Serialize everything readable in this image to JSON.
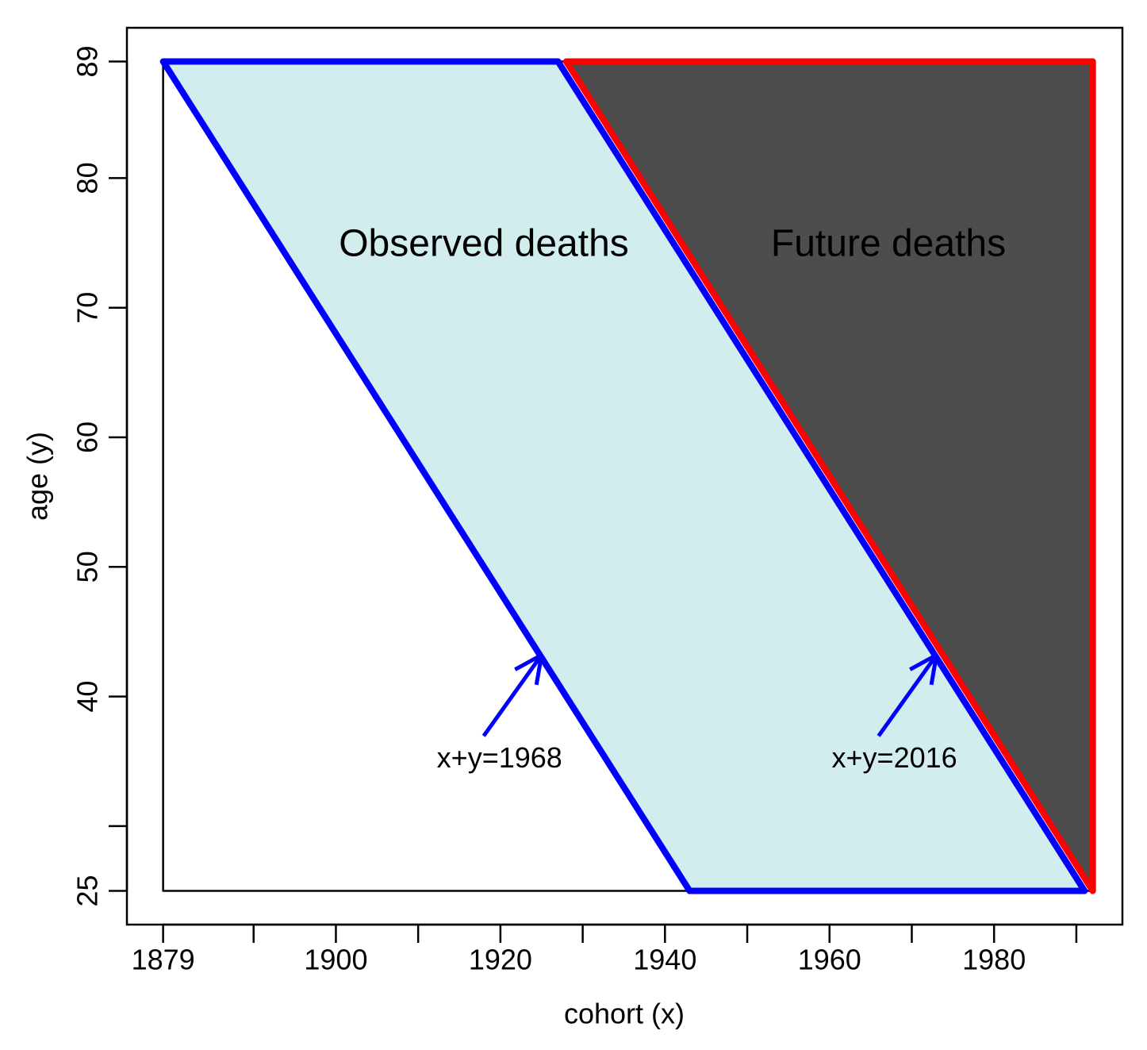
{
  "chart_data": {
    "type": "polygon",
    "x_label": "cohort (x)",
    "y_label": "age (y)",
    "xlim": [
      1874.6,
      1995.6
    ],
    "ylim": [
      22.4,
      91.6
    ],
    "xticks": [
      1879,
      1900,
      1920,
      1940,
      1960,
      1980
    ],
    "xminorticks": [
      1890,
      1910,
      1930,
      1950,
      1970,
      1990
    ],
    "yticks": [
      25,
      40,
      50,
      60,
      70,
      80,
      89
    ],
    "yminorticks": [
      30
    ],
    "series": [
      {
        "x": [
          1879,
          1879,
          1992,
          1992
        ],
        "values": [
          89,
          25,
          25,
          89
        ],
        "color": "#000000",
        "fill": "none"
      },
      {
        "x": [
          1879,
          1927,
          1991,
          1943
        ],
        "values": [
          89,
          89,
          25,
          25
        ],
        "color": "#0000ff",
        "fill": "#d1eded",
        "label": "Observed deaths",
        "label_color": "#000000"
      },
      {
        "x": [
          1928,
          1992,
          1992
        ],
        "values": [
          89,
          89,
          25
        ],
        "color": "#ff0000",
        "fill": "#4d4d4d",
        "label": "Future deaths",
        "label_color": "#ffffff"
      }
    ],
    "annotations": [
      {
        "text": "x+y=1968",
        "x": 1925,
        "y": 43.2,
        "color": "#0000ff"
      },
      {
        "text": "x+y=2016",
        "x": 1973,
        "y": 43.2,
        "color": "#0000ff"
      }
    ]
  }
}
